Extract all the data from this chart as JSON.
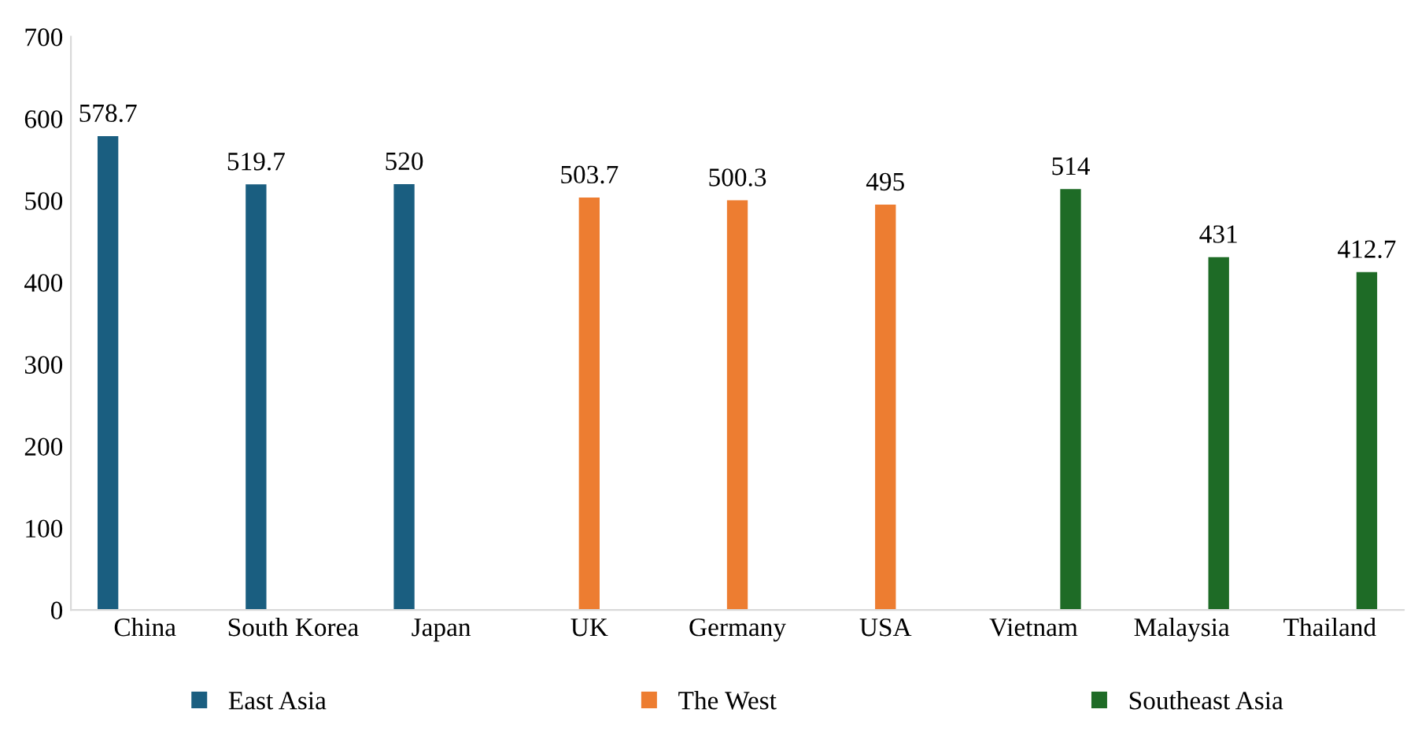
{
  "chart_data": {
    "type": "bar",
    "categories": [
      "China",
      "South Korea",
      "Japan",
      "UK",
      "Germany",
      "USA",
      "Vietnam",
      "Malaysia",
      "Thailand"
    ],
    "series": [
      {
        "name": "East Asia",
        "color": "#1a5e80",
        "values": [
          578.7,
          519.7,
          520,
          null,
          null,
          null,
          null,
          null,
          null
        ]
      },
      {
        "name": "The West",
        "color": "#ed7d31",
        "values": [
          null,
          null,
          null,
          503.7,
          500.3,
          495,
          null,
          null,
          null
        ]
      },
      {
        "name": "Southeast Asia",
        "color": "#1e6b26",
        "values": [
          null,
          null,
          null,
          null,
          null,
          null,
          514,
          431,
          412.7
        ]
      }
    ],
    "ylim": [
      0,
      700
    ],
    "yticks": [
      0,
      100,
      200,
      300,
      400,
      500,
      600,
      700
    ],
    "data_labels": true,
    "legend": "bottom",
    "grid": false
  }
}
